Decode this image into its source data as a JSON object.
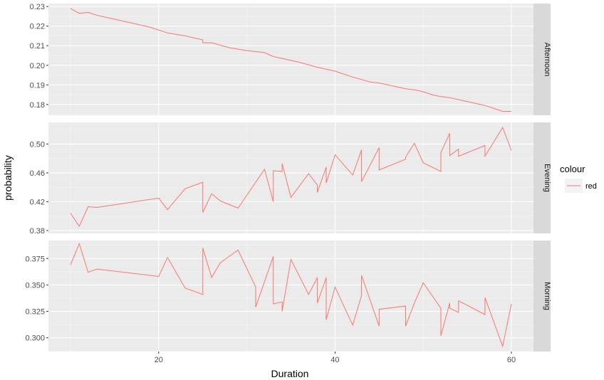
{
  "chart_data": {
    "type": "line",
    "xlabel": "Duration",
    "ylabel": "probability",
    "x_ticks": [
      20,
      40,
      60
    ],
    "xlim": [
      7.5,
      62.5
    ],
    "grid": true,
    "legend": {
      "title": "colour",
      "placement": "right",
      "entries": [
        {
          "label": "red",
          "color": "#F8766D"
        }
      ]
    },
    "line_color": "#F8766D",
    "panels": [
      {
        "strip": "Afternoon",
        "ylim": [
          0.1745,
          0.2315
        ],
        "y_ticks": [
          0.18,
          0.19,
          0.2,
          0.21,
          0.22,
          0.23
        ],
        "y_tick_labels": [
          "0.18",
          "0.19",
          "0.20",
          "0.21",
          "0.22",
          "0.23"
        ],
        "x": [
          10,
          11,
          12,
          13,
          15,
          17,
          19,
          20,
          21,
          23,
          25,
          25,
          26,
          28,
          30,
          32,
          33,
          34,
          36,
          38,
          40,
          42,
          44,
          45,
          46,
          48,
          49,
          50,
          51,
          52,
          53,
          55,
          57,
          58,
          59,
          60
        ],
        "y": [
          0.229,
          0.2265,
          0.227,
          0.2255,
          0.2235,
          0.2215,
          0.2195,
          0.218,
          0.2165,
          0.215,
          0.213,
          0.2115,
          0.2115,
          0.209,
          0.2075,
          0.2065,
          0.2045,
          0.2035,
          0.2015,
          0.199,
          0.197,
          0.194,
          0.1915,
          0.191,
          0.19,
          0.188,
          0.1875,
          0.1865,
          0.185,
          0.184,
          0.1835,
          0.1815,
          0.1795,
          0.178,
          0.1765,
          0.1765
        ]
      },
      {
        "strip": "Evening",
        "ylim": [
          0.376,
          0.53
        ],
        "y_ticks": [
          0.38,
          0.42,
          0.46,
          0.5
        ],
        "y_tick_labels": [
          "0.38",
          "0.42",
          "0.46",
          "0.50"
        ],
        "x": [
          10,
          11,
          12,
          13,
          20,
          21,
          23,
          25,
          25,
          26,
          27,
          29,
          31,
          32,
          33,
          33,
          34,
          34,
          35,
          37,
          38,
          38,
          39,
          39,
          40,
          42,
          43,
          43,
          45,
          45,
          48,
          48,
          49,
          50,
          52,
          52,
          53,
          53,
          54,
          54,
          57,
          57,
          59,
          60
        ],
        "y": [
          0.404,
          0.386,
          0.413,
          0.412,
          0.425,
          0.409,
          0.438,
          0.447,
          0.405,
          0.431,
          0.421,
          0.411,
          0.447,
          0.465,
          0.42,
          0.463,
          0.462,
          0.473,
          0.426,
          0.459,
          0.443,
          0.433,
          0.468,
          0.446,
          0.485,
          0.457,
          0.492,
          0.448,
          0.495,
          0.464,
          0.479,
          0.482,
          0.501,
          0.474,
          0.462,
          0.488,
          0.515,
          0.484,
          0.493,
          0.483,
          0.498,
          0.483,
          0.523,
          0.491
        ]
      },
      {
        "strip": "Morning",
        "ylim": [
          0.287,
          0.392
        ],
        "y_ticks": [
          0.3,
          0.325,
          0.35,
          0.375
        ],
        "y_tick_labels": [
          "0.300",
          "0.325",
          "0.350",
          "0.375"
        ],
        "x": [
          10,
          11,
          12,
          13,
          20,
          21,
          23,
          25,
          25,
          26,
          27,
          29,
          31,
          31,
          33,
          33,
          34,
          34,
          35,
          37,
          38,
          38,
          39,
          39,
          40,
          42,
          43,
          43,
          45,
          45,
          48,
          48,
          49,
          50,
          52,
          52,
          53,
          53,
          54,
          54,
          57,
          57,
          59,
          60
        ],
        "y": [
          0.369,
          0.389,
          0.362,
          0.365,
          0.358,
          0.376,
          0.347,
          0.341,
          0.385,
          0.357,
          0.371,
          0.383,
          0.348,
          0.329,
          0.377,
          0.332,
          0.334,
          0.325,
          0.374,
          0.341,
          0.357,
          0.333,
          0.357,
          0.317,
          0.348,
          0.312,
          0.34,
          0.359,
          0.311,
          0.327,
          0.33,
          0.311,
          0.333,
          0.352,
          0.328,
          0.302,
          0.333,
          0.328,
          0.324,
          0.335,
          0.322,
          0.338,
          0.292,
          0.332
        ]
      }
    ]
  }
}
